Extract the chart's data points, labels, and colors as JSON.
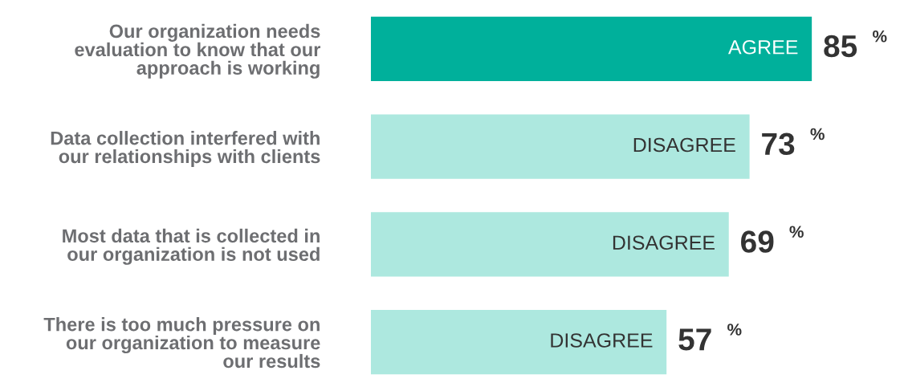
{
  "chart_data": {
    "type": "bar",
    "orientation": "horizontal",
    "categories": [
      "Our organization needs\nevaluation to know that our\napproach is working",
      "Data collection interfered with\nour relationships with clients",
      "Most data that is collected in\nour organization is not used",
      "There is too much pressure on\nour organization to measure\nour results"
    ],
    "values": [
      85,
      73,
      69,
      57
    ],
    "colors": [
      "#00b09b",
      "#ade8df",
      "#ade8df",
      "#ade8df"
    ],
    "value_labels": [
      "85$^{%}$",
      "73$^{%}$",
      "69$^{%}$",
      "57$^{%}$"
    ],
    "annotations": [
      {
        "text": "AGREE",
        "x": 85,
        "y": "Our organization needs\nevaluation to know that our\napproach is working"
      },
      {
        "text": "DISAGREE",
        "x": 73,
        "y": "Data collection interfered with\nour relationships with clients"
      },
      {
        "text": "DISAGREE",
        "x": 69,
        "y": "Most data that is collected in\nour organization is not used"
      },
      {
        "text": "DISAGREE",
        "x": 57,
        "y": "There is too much pressure on\nour organization to measure\nour results"
      }
    ],
    "grid": false,
    "legend": false
  }
}
